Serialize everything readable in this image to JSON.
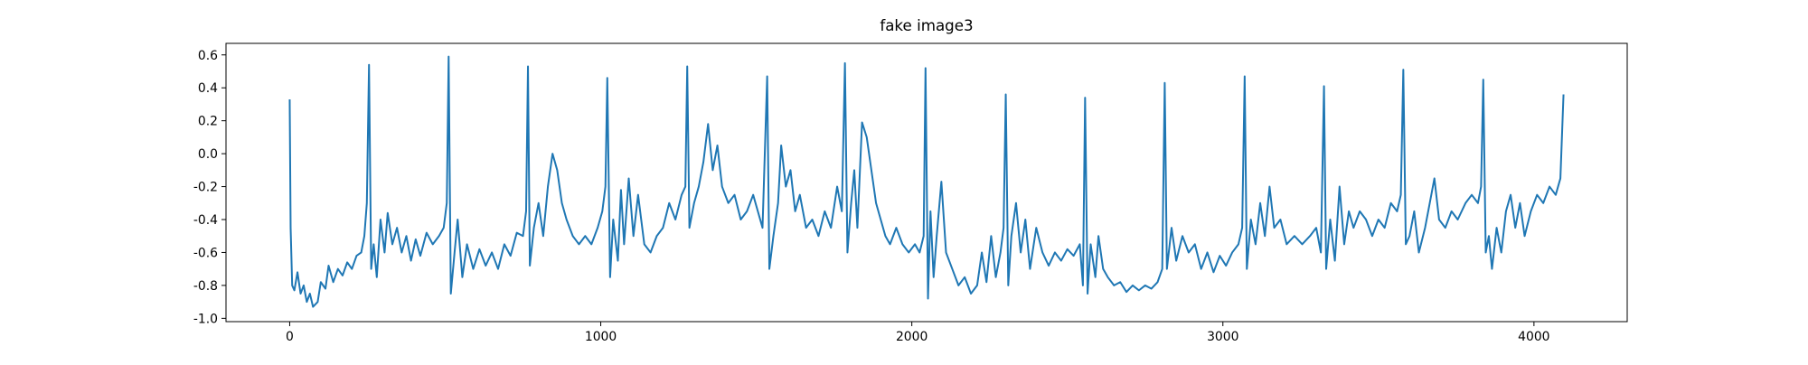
{
  "chart_data": {
    "type": "line",
    "title": "fake image3",
    "color": "#1f77b4",
    "xlim": [
      -204.75,
      4299.75
    ],
    "ylim": [
      -1.02,
      0.67
    ],
    "xticks": [
      0,
      1000,
      2000,
      3000,
      4000
    ],
    "yticks": [
      {
        "value": -1.0,
        "label": "-1.0"
      },
      {
        "value": -0.8,
        "label": "-0.8"
      },
      {
        "value": -0.6,
        "label": "-0.6"
      },
      {
        "value": -0.4,
        "label": "-0.4"
      },
      {
        "value": -0.2,
        "label": "-0.2"
      },
      {
        "value": 0.0,
        "label": "0.0"
      },
      {
        "value": 0.2,
        "label": "0.2"
      },
      {
        "value": 0.4,
        "label": "0.4"
      },
      {
        "value": 0.6,
        "label": "0.6"
      }
    ],
    "x": [
      0,
      3,
      8,
      15,
      25,
      35,
      45,
      55,
      65,
      75,
      90,
      100,
      115,
      125,
      140,
      155,
      170,
      185,
      200,
      215,
      230,
      240,
      248,
      255,
      262,
      270,
      280,
      292,
      305,
      315,
      330,
      345,
      360,
      375,
      390,
      405,
      420,
      440,
      460,
      480,
      495,
      505,
      511,
      518,
      530,
      540,
      555,
      570,
      590,
      610,
      630,
      650,
      670,
      690,
      710,
      730,
      750,
      760,
      766,
      772,
      785,
      800,
      815,
      830,
      845,
      860,
      875,
      890,
      910,
      930,
      950,
      970,
      990,
      1005,
      1015,
      1021,
      1030,
      1040,
      1055,
      1065,
      1075,
      1090,
      1105,
      1120,
      1140,
      1160,
      1180,
      1200,
      1220,
      1240,
      1260,
      1272,
      1278,
      1285,
      1300,
      1315,
      1330,
      1345,
      1360,
      1375,
      1390,
      1410,
      1430,
      1450,
      1470,
      1490,
      1505,
      1520,
      1535,
      1542,
      1555,
      1570,
      1580,
      1595,
      1610,
      1625,
      1640,
      1660,
      1680,
      1700,
      1720,
      1740,
      1760,
      1775,
      1785,
      1793,
      1805,
      1815,
      1825,
      1840,
      1855,
      1870,
      1885,
      1900,
      1915,
      1930,
      1950,
      1970,
      1990,
      2010,
      2025,
      2038,
      2044,
      2052,
      2060,
      2070,
      2080,
      2095,
      2110,
      2130,
      2150,
      2170,
      2190,
      2210,
      2225,
      2240,
      2255,
      2270,
      2285,
      2295,
      2302,
      2310,
      2320,
      2335,
      2350,
      2365,
      2380,
      2400,
      2420,
      2440,
      2460,
      2480,
      2500,
      2520,
      2540,
      2550,
      2557,
      2565,
      2575,
      2590,
      2600,
      2615,
      2630,
      2650,
      2670,
      2690,
      2710,
      2730,
      2750,
      2770,
      2790,
      2805,
      2813,
      2820,
      2835,
      2850,
      2870,
      2890,
      2910,
      2930,
      2950,
      2970,
      2990,
      3010,
      3030,
      3050,
      3062,
      3070,
      3077,
      3090,
      3105,
      3120,
      3135,
      3150,
      3165,
      3185,
      3205,
      3230,
      3255,
      3280,
      3300,
      3315,
      3325,
      3332,
      3345,
      3360,
      3375,
      3390,
      3405,
      3420,
      3440,
      3460,
      3480,
      3500,
      3520,
      3540,
      3560,
      3572,
      3580,
      3588,
      3600,
      3615,
      3630,
      3650,
      3665,
      3680,
      3695,
      3715,
      3735,
      3755,
      3780,
      3800,
      3820,
      3830,
      3837,
      3845,
      3855,
      3865,
      3880,
      3895,
      3910,
      3925,
      3940,
      3955,
      3970,
      3990,
      4010,
      4030,
      4050,
      4070,
      4085,
      4095
    ],
    "values": [
      0.33,
      -0.45,
      -0.8,
      -0.83,
      -0.72,
      -0.85,
      -0.8,
      -0.9,
      -0.85,
      -0.93,
      -0.9,
      -0.78,
      -0.82,
      -0.68,
      -0.78,
      -0.7,
      -0.74,
      -0.66,
      -0.7,
      -0.62,
      -0.6,
      -0.5,
      -0.3,
      0.54,
      -0.7,
      -0.55,
      -0.75,
      -0.4,
      -0.6,
      -0.36,
      -0.55,
      -0.45,
      -0.6,
      -0.5,
      -0.65,
      -0.52,
      -0.62,
      -0.48,
      -0.55,
      -0.5,
      -0.45,
      -0.3,
      0.59,
      -0.85,
      -0.6,
      -0.4,
      -0.75,
      -0.55,
      -0.7,
      -0.58,
      -0.68,
      -0.6,
      -0.7,
      -0.55,
      -0.62,
      -0.48,
      -0.5,
      -0.35,
      0.53,
      -0.68,
      -0.45,
      -0.3,
      -0.5,
      -0.2,
      0.0,
      -0.1,
      -0.3,
      -0.4,
      -0.5,
      -0.55,
      -0.5,
      -0.55,
      -0.45,
      -0.35,
      -0.2,
      0.46,
      -0.75,
      -0.4,
      -0.65,
      -0.22,
      -0.55,
      -0.15,
      -0.5,
      -0.25,
      -0.55,
      -0.6,
      -0.5,
      -0.45,
      -0.3,
      -0.4,
      -0.25,
      -0.2,
      0.53,
      -0.45,
      -0.3,
      -0.2,
      -0.05,
      0.18,
      -0.1,
      0.05,
      -0.2,
      -0.3,
      -0.25,
      -0.4,
      -0.35,
      -0.25,
      -0.35,
      -0.45,
      0.47,
      -0.7,
      -0.5,
      -0.3,
      0.05,
      -0.2,
      -0.1,
      -0.35,
      -0.25,
      -0.45,
      -0.4,
      -0.5,
      -0.35,
      -0.45,
      -0.2,
      -0.35,
      0.55,
      -0.6,
      -0.3,
      -0.1,
      -0.45,
      0.19,
      0.1,
      -0.1,
      -0.3,
      -0.4,
      -0.5,
      -0.55,
      -0.45,
      -0.55,
      -0.6,
      -0.55,
      -0.6,
      -0.5,
      0.52,
      -0.88,
      -0.35,
      -0.75,
      -0.5,
      -0.17,
      -0.6,
      -0.7,
      -0.8,
      -0.75,
      -0.85,
      -0.8,
      -0.6,
      -0.78,
      -0.5,
      -0.75,
      -0.6,
      -0.45,
      0.36,
      -0.8,
      -0.5,
      -0.3,
      -0.6,
      -0.4,
      -0.7,
      -0.45,
      -0.6,
      -0.68,
      -0.6,
      -0.65,
      -0.58,
      -0.62,
      -0.55,
      -0.8,
      0.34,
      -0.85,
      -0.55,
      -0.75,
      -0.5,
      -0.7,
      -0.75,
      -0.8,
      -0.78,
      -0.84,
      -0.8,
      -0.83,
      -0.8,
      -0.82,
      -0.78,
      -0.7,
      0.43,
      -0.7,
      -0.45,
      -0.65,
      -0.5,
      -0.6,
      -0.55,
      -0.7,
      -0.6,
      -0.72,
      -0.62,
      -0.68,
      -0.6,
      -0.55,
      -0.45,
      0.47,
      -0.7,
      -0.4,
      -0.55,
      -0.3,
      -0.5,
      -0.2,
      -0.45,
      -0.4,
      -0.55,
      -0.5,
      -0.55,
      -0.5,
      -0.45,
      -0.6,
      0.41,
      -0.7,
      -0.4,
      -0.65,
      -0.2,
      -0.55,
      -0.35,
      -0.45,
      -0.35,
      -0.4,
      -0.5,
      -0.4,
      -0.45,
      -0.3,
      -0.35,
      -0.25,
      0.51,
      -0.55,
      -0.5,
      -0.35,
      -0.6,
      -0.45,
      -0.3,
      -0.15,
      -0.4,
      -0.45,
      -0.35,
      -0.4,
      -0.3,
      -0.25,
      -0.3,
      -0.2,
      0.45,
      -0.6,
      -0.5,
      -0.7,
      -0.45,
      -0.6,
      -0.35,
      -0.25,
      -0.45,
      -0.3,
      -0.5,
      -0.35,
      -0.25,
      -0.3,
      -0.2,
      -0.25,
      -0.15,
      0.36
    ]
  }
}
